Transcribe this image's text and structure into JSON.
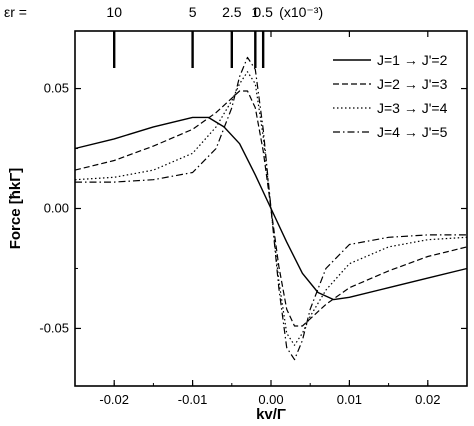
{
  "chart_data": {
    "type": "line",
    "xlabel": "kv/Γ",
    "ylabel": "Force [ħkΓ]",
    "xlim": [
      -0.025,
      0.025
    ],
    "ylim": [
      -0.074,
      0.074
    ],
    "x_ticks": [
      -0.02,
      -0.01,
      0.0,
      0.01,
      0.02
    ],
    "x_tick_labels": [
      "-0.02",
      "-0.01",
      "0.00",
      "0.01",
      "0.02"
    ],
    "y_ticks": [
      -0.05,
      0.0,
      0.05
    ],
    "y_tick_labels": [
      "-0.05",
      "0.00",
      "0.05"
    ],
    "top_axis": {
      "label": "εr =",
      "multiplier": "(x10⁻³)",
      "markers": [
        {
          "label": "10",
          "x": -0.02
        },
        {
          "label": "5",
          "x": -0.01
        },
        {
          "label": "2.5",
          "x": -0.005
        },
        {
          "label": "1",
          "x": -0.002
        },
        {
          "label": "0.5",
          "x": -0.001
        }
      ]
    },
    "legend_position": "top-right",
    "series": [
      {
        "name": "J=1 → J'=2",
        "dash": "solid",
        "x": [
          -0.025,
          -0.02,
          -0.015,
          -0.01,
          -0.008,
          -0.006,
          -0.004,
          -0.002,
          0.0,
          0.002,
          0.004,
          0.006,
          0.008,
          0.01,
          0.015,
          0.02,
          0.025
        ],
        "y": [
          0.025,
          0.029,
          0.034,
          0.038,
          0.038,
          0.034,
          0.027,
          0.014,
          0.0,
          -0.014,
          -0.027,
          -0.035,
          -0.038,
          -0.037,
          -0.033,
          -0.029,
          -0.025
        ]
      },
      {
        "name": "J=2 → J'=3",
        "dash": "dashed",
        "x": [
          -0.025,
          -0.02,
          -0.015,
          -0.01,
          -0.007,
          -0.005,
          -0.004,
          -0.003,
          -0.002,
          -0.001,
          0.0,
          0.001,
          0.002,
          0.003,
          0.004,
          0.005,
          0.007,
          0.01,
          0.015,
          0.02,
          0.025
        ],
        "y": [
          0.016,
          0.02,
          0.026,
          0.033,
          0.04,
          0.046,
          0.049,
          0.049,
          0.042,
          0.024,
          0.0,
          -0.024,
          -0.042,
          -0.049,
          -0.049,
          -0.046,
          -0.04,
          -0.033,
          -0.026,
          -0.02,
          -0.016
        ]
      },
      {
        "name": "J=3 → J'=4",
        "dash": "dotted",
        "x": [
          -0.025,
          -0.02,
          -0.015,
          -0.01,
          -0.007,
          -0.005,
          -0.004,
          -0.003,
          -0.002,
          -0.001,
          0.0,
          0.001,
          0.002,
          0.003,
          0.004,
          0.005,
          0.007,
          0.01,
          0.015,
          0.02,
          0.025
        ],
        "y": [
          0.012,
          0.013,
          0.016,
          0.023,
          0.034,
          0.045,
          0.052,
          0.057,
          0.052,
          0.03,
          0.0,
          -0.03,
          -0.052,
          -0.057,
          -0.052,
          -0.045,
          -0.034,
          -0.023,
          -0.016,
          -0.013,
          -0.012
        ]
      },
      {
        "name": "J=4 → J'=5",
        "dash": "dashdot",
        "x": [
          -0.025,
          -0.02,
          -0.015,
          -0.01,
          -0.007,
          -0.005,
          -0.004,
          -0.003,
          -0.002,
          -0.001,
          0.0,
          0.001,
          0.002,
          0.003,
          0.004,
          0.005,
          0.007,
          0.01,
          0.015,
          0.02,
          0.025
        ],
        "y": [
          0.011,
          0.011,
          0.012,
          0.015,
          0.025,
          0.042,
          0.055,
          0.063,
          0.058,
          0.033,
          0.0,
          -0.033,
          -0.058,
          -0.063,
          -0.055,
          -0.042,
          -0.025,
          -0.015,
          -0.012,
          -0.011,
          -0.011
        ]
      }
    ]
  }
}
